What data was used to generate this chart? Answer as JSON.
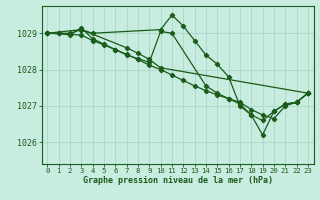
{
  "background_color": "#c8ece0",
  "grid_color": "#a8d8c8",
  "line_color": "#1a5c1a",
  "text_color": "#1a5c1a",
  "xlabel": "Graphe pression niveau de la mer (hPa)",
  "xlim": [
    -0.5,
    23.5
  ],
  "ylim": [
    1025.4,
    1029.75
  ],
  "yticks": [
    1026,
    1027,
    1028,
    1029
  ],
  "xticks": [
    0,
    1,
    2,
    3,
    4,
    5,
    6,
    7,
    8,
    9,
    10,
    11,
    12,
    13,
    14,
    15,
    16,
    17,
    18,
    19,
    20,
    21,
    22,
    23
  ],
  "series": [
    {
      "x": [
        0,
        1,
        2,
        3,
        4,
        10,
        11,
        12,
        13,
        14,
        15,
        16,
        17,
        18,
        19,
        20,
        21,
        22,
        23
      ],
      "y": [
        1029.0,
        1029.0,
        1029.0,
        1029.1,
        1029.0,
        1029.1,
        1029.5,
        1029.2,
        1028.8,
        1028.4,
        1028.15,
        1027.8,
        1027.0,
        1026.75,
        1026.2,
        1026.85,
        1027.05,
        1027.1,
        1027.35
      ]
    },
    {
      "x": [
        0,
        1,
        2,
        3,
        4,
        5,
        6,
        7,
        8,
        9,
        10,
        11,
        14,
        15,
        16,
        17,
        18,
        19,
        20,
        21,
        22,
        23
      ],
      "y": [
        1029.0,
        1029.0,
        1028.95,
        1029.15,
        1028.85,
        1028.7,
        1028.55,
        1028.4,
        1028.3,
        1028.2,
        1029.05,
        1029.0,
        1027.55,
        1027.35,
        1027.2,
        1027.05,
        1026.75,
        1026.6,
        1026.85,
        1027.05,
        1027.1,
        1027.35
      ]
    },
    {
      "x": [
        0,
        3,
        4,
        5,
        6,
        7,
        8,
        9,
        10,
        11,
        12,
        13,
        14,
        15,
        16,
        17,
        18,
        19,
        20,
        21,
        22,
        23
      ],
      "y": [
        1029.0,
        1028.95,
        1028.8,
        1028.68,
        1028.55,
        1028.42,
        1028.28,
        1028.12,
        1028.0,
        1027.85,
        1027.7,
        1027.55,
        1027.42,
        1027.3,
        1027.2,
        1027.1,
        1026.9,
        1026.75,
        1026.65,
        1027.0,
        1027.1,
        1027.35
      ]
    },
    {
      "x": [
        0,
        3,
        7,
        8,
        9,
        10,
        23
      ],
      "y": [
        1029.0,
        1029.1,
        1028.6,
        1028.45,
        1028.28,
        1028.05,
        1027.35
      ]
    }
  ]
}
